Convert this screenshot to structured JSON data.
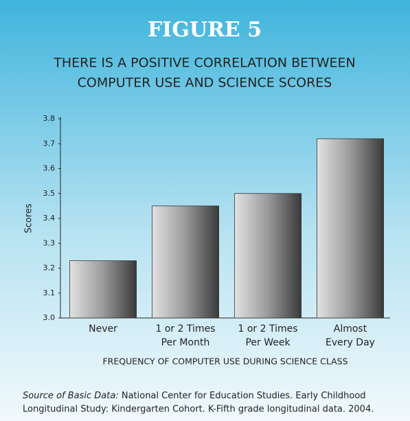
{
  "chart_data": {
    "type": "bar",
    "title": "FIGURE 5",
    "subtitle": [
      "THERE IS A POSITIVE CORRELATION BETWEEN",
      "COMPUTER USE AND SCIENCE SCORES"
    ],
    "categories": [
      [
        "Never"
      ],
      [
        "1 or 2 Times",
        "Per Month"
      ],
      [
        "1 or 2 Times",
        "Per Week"
      ],
      [
        "Almost",
        "Every Day"
      ]
    ],
    "values": [
      3.23,
      3.45,
      3.5,
      3.72
    ],
    "ylim": [
      3.0,
      3.8
    ],
    "yticks": [
      {
        "value": 3.0,
        "label": "3.0"
      },
      3.1,
      3.2,
      3.3,
      3.4,
      3.5,
      3.6,
      3.7,
      3.8
    ],
    "ylabel": "Scores",
    "xlabel": "FREQUENCY OF COMPUTER USE DURING SCIENCE CLASS",
    "grid": false,
    "source": {
      "label": "Source of Basic Data:",
      "lines": [
        "National Center for Education Studies. Early Childhood",
        "Longitudinal Study: Kindergarten Cohort. K-Fifth grade longitudinal data. 2004."
      ]
    }
  }
}
